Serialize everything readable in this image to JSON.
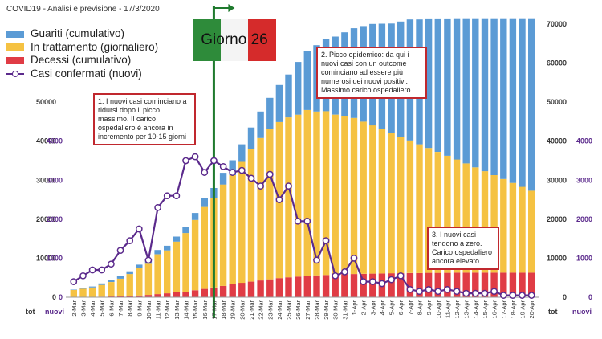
{
  "header": {
    "title": "COVID19 - Analisi e previsione - 17/3/2020"
  },
  "legend": {
    "guariti": "Guariti (cumulativo)",
    "trattamento": "In trattamento (giornaliero)",
    "decessi": "Decessi (cumulativo)",
    "casi": "Casi confermati (nuovi)"
  },
  "flag": {
    "label": "Giorno 26"
  },
  "axis_labels": {
    "tot": "tot",
    "nuovi": "nuovi"
  },
  "annotations": [
    {
      "id": "a1",
      "text": "1. I nuovi casi cominciano a ridursi dopo il picco massimo. Il carico ospedaliero è ancora in incremento per 10-15 giorni"
    },
    {
      "id": "a2",
      "text": "2. Picco epidemico: da qui i nuovi casi con un outcome cominciano ad essere più numerosi dei nuovi positivi. Massimo carico ospedaliero."
    },
    {
      "id": "a3",
      "text": "3. I nuovi casi tendono a zero. Carico ospedaliero ancora elevato."
    }
  ],
  "colors": {
    "guariti": "#5b9bd5",
    "trattamento": "#f5c242",
    "decessi": "#e03c45",
    "casi": "#5b2a8c",
    "marker": "#1f7a2e",
    "note_border": "#c0282e"
  },
  "chart_data": {
    "type": "bar",
    "stacked": true,
    "categories": [
      "2-Mar",
      "3-Mar",
      "4-Mar",
      "5-Mar",
      "6-Mar",
      "7-Mar",
      "8-Mar",
      "9-Mar",
      "10-Mar",
      "11-Mar",
      "12-Mar",
      "13-Mar",
      "14-Mar",
      "15-Mar",
      "16-Mar",
      "17-Mar",
      "18-Mar",
      "19-Mar",
      "20-Mar",
      "21-Mar",
      "22-Mar",
      "23-Mar",
      "24-Mar",
      "25-Mar",
      "26-Mar",
      "27-Mar",
      "28-Mar",
      "29-Mar",
      "30-Mar",
      "31-Mar",
      "1-Apr",
      "2-Apr",
      "3-Apr",
      "4-Apr",
      "5-Apr",
      "6-Apr",
      "7-Apr",
      "8-Apr",
      "9-Apr",
      "10-Apr",
      "11-Apr",
      "12-Apr",
      "13-Apr",
      "14-Apr",
      "15-Apr",
      "16-Apr",
      "17-Apr",
      "18-Apr",
      "19-Apr",
      "20-Apr"
    ],
    "series": [
      {
        "name": "Decessi (cumulativo)",
        "axis": "left",
        "values": [
          50,
          80,
          110,
          150,
          200,
          250,
          350,
          450,
          600,
          800,
          1000,
          1250,
          1450,
          1800,
          2150,
          2500,
          2900,
          3300,
          3700,
          4000,
          4300,
          4600,
          4900,
          5100,
          5300,
          5500,
          5600,
          5700,
          5800,
          5900,
          5950,
          6000,
          6050,
          6100,
          6150,
          6150,
          6200,
          6200,
          6250,
          6250,
          6250,
          6300,
          6300,
          6300,
          6300,
          6300,
          6300,
          6300,
          6300,
          6300
        ]
      },
      {
        "name": "In trattamento (giornaliero)",
        "axis": "left",
        "values": [
          1800,
          2100,
          2400,
          3000,
          3700,
          4500,
          5600,
          7000,
          8000,
          10200,
          11000,
          13000,
          15000,
          18000,
          21000,
          23000,
          26000,
          28000,
          31000,
          34000,
          36500,
          38500,
          40000,
          41000,
          41500,
          42500,
          42000,
          42000,
          41000,
          40500,
          40000,
          39000,
          38000,
          37000,
          36000,
          35000,
          34000,
          33000,
          32000,
          31000,
          30000,
          29000,
          28000,
          27000,
          26000,
          25000,
          24000,
          23000,
          22000,
          21000
        ]
      },
      {
        "name": "Guariti (cumulativo)",
        "axis": "left",
        "values": [
          100,
          150,
          250,
          400,
          500,
          600,
          700,
          900,
          1000,
          1100,
          1200,
          1300,
          1500,
          1800,
          2200,
          2500,
          3000,
          3800,
          4500,
          5500,
          6800,
          8000,
          9500,
          11000,
          13500,
          15000,
          17000,
          18500,
          20000,
          21500,
          23000,
          24500,
          26000,
          27000,
          28000,
          29500,
          31000,
          32000,
          33000,
          34000,
          35000,
          36000,
          37000,
          38000,
          39000,
          40000,
          41000,
          42000,
          43000,
          44000
        ]
      },
      {
        "name": "Casi confermati (nuovi)",
        "axis": "right",
        "type": "line",
        "values": [
          400,
          550,
          700,
          700,
          850,
          1200,
          1450,
          1750,
          950,
          2300,
          2600,
          2600,
          3500,
          3600,
          3200,
          3500,
          3350,
          3200,
          3250,
          3050,
          2850,
          3150,
          2500,
          2850,
          1950,
          1950,
          950,
          1450,
          550,
          650,
          1000,
          400,
          400,
          350,
          450,
          550,
          200,
          150,
          200,
          150,
          200,
          150,
          100,
          100,
          100,
          150,
          50,
          50,
          50,
          50
        ]
      }
    ],
    "y_left": {
      "ylim": [
        0,
        70000
      ],
      "ticks": [
        0,
        10000,
        20000,
        30000,
        40000,
        50000
      ],
      "label": "tot"
    },
    "y_right": {
      "ylim": [
        0,
        7000
      ],
      "ticks": [
        0,
        1000,
        2000,
        3000,
        4000
      ],
      "label": "nuovi"
    },
    "y_right_top": {
      "ticks": [
        0,
        10000,
        20000,
        30000,
        40000,
        50000,
        60000,
        70000
      ]
    },
    "marker_category": "17-Mar"
  }
}
